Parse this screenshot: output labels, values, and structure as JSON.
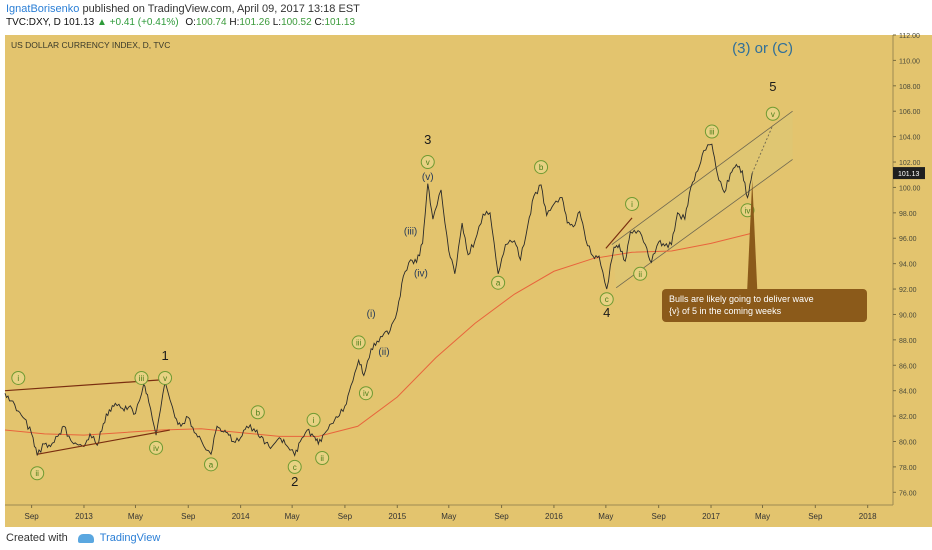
{
  "header": {
    "author": "IgnatBorisenko",
    "published_text": " published on TradingView.com, April 09, 2017 13:18 EST",
    "symbol": "TVC:DXY, D",
    "last": "101.13",
    "change": "▲ +0.41 (+0.41%)",
    "o_label": "O:",
    "o_val": "100.74",
    "h_label": "H:",
    "h_val": "101.26",
    "l_label": "L:",
    "l_val": "100.52",
    "c_label": "C:",
    "c_val": "101.13"
  },
  "footer": {
    "created_with": "Created with",
    "brand": "TradingView"
  },
  "colors": {
    "background": "#e3c46e",
    "price_line": "#2a2a2a",
    "moving_average": "#e8643c",
    "trendline": "#7a2e10",
    "wave_label": "#4b7d1a",
    "wave_fill": "#dec774",
    "title_accent": "#2f6f9a",
    "callout": "#8b5a1a"
  },
  "chart_data": {
    "type": "line",
    "title": "US DOLLAR CURRENCY INDEX, D, TVC",
    "ylim": [
      75,
      112
    ],
    "yticks": [
      76,
      78,
      80,
      82,
      84,
      86,
      88,
      90,
      92,
      94,
      96,
      98,
      100,
      102,
      104,
      106,
      108,
      110,
      112
    ],
    "xlim": [
      "2012-07-01",
      "2018-03-01"
    ],
    "xticks": [
      {
        "date": "2012-09-01",
        "label": "Sep"
      },
      {
        "date": "2013-01-01",
        "label": "2013"
      },
      {
        "date": "2013-05-01",
        "label": "May"
      },
      {
        "date": "2013-09-01",
        "label": "Sep"
      },
      {
        "date": "2014-01-01",
        "label": "2014"
      },
      {
        "date": "2014-05-01",
        "label": "May"
      },
      {
        "date": "2014-09-01",
        "label": "Sep"
      },
      {
        "date": "2015-01-01",
        "label": "2015"
      },
      {
        "date": "2015-05-01",
        "label": "May"
      },
      {
        "date": "2015-09-01",
        "label": "Sep"
      },
      {
        "date": "2016-01-01",
        "label": "2016"
      },
      {
        "date": "2016-05-01",
        "label": "May"
      },
      {
        "date": "2016-09-01",
        "label": "Sep"
      },
      {
        "date": "2017-01-01",
        "label": "2017"
      },
      {
        "date": "2017-05-01",
        "label": "May"
      },
      {
        "date": "2017-09-01",
        "label": "Sep"
      },
      {
        "date": "2018-01-01",
        "label": "2018"
      }
    ],
    "grid": false,
    "last_price_label": "101.13",
    "price": [
      [
        "2012-07-01",
        83.8
      ],
      [
        "2012-07-15",
        83.2
      ],
      [
        "2012-08-01",
        82.4
      ],
      [
        "2012-08-15",
        81.8
      ],
      [
        "2012-09-01",
        80.6
      ],
      [
        "2012-09-14",
        78.9
      ],
      [
        "2012-10-01",
        79.8
      ],
      [
        "2012-10-15",
        79.6
      ],
      [
        "2012-11-01",
        80.4
      ],
      [
        "2012-11-15",
        81.2
      ],
      [
        "2012-12-01",
        80.1
      ],
      [
        "2012-12-15",
        79.8
      ],
      [
        "2013-01-01",
        79.6
      ],
      [
        "2013-01-15",
        80.6
      ],
      [
        "2013-02-01",
        79.7
      ],
      [
        "2013-02-15",
        81.4
      ],
      [
        "2013-03-01",
        82.5
      ],
      [
        "2013-03-15",
        83.0
      ],
      [
        "2013-04-01",
        82.6
      ],
      [
        "2013-04-15",
        82.7
      ],
      [
        "2013-05-01",
        82.2
      ],
      [
        "2013-05-20",
        84.5
      ],
      [
        "2013-06-01",
        83.1
      ],
      [
        "2013-06-18",
        80.5
      ],
      [
        "2013-07-09",
        84.7
      ],
      [
        "2013-08-01",
        81.9
      ],
      [
        "2013-08-15",
        81.2
      ],
      [
        "2013-09-01",
        81.9
      ],
      [
        "2013-09-15",
        80.7
      ],
      [
        "2013-10-01",
        80.1
      ],
      [
        "2013-10-24",
        79.0
      ],
      [
        "2013-11-07",
        81.2
      ],
      [
        "2013-11-20",
        80.8
      ],
      [
        "2013-12-01",
        80.7
      ],
      [
        "2013-12-15",
        80.0
      ],
      [
        "2014-01-01",
        80.3
      ],
      [
        "2014-01-15",
        81.2
      ],
      [
        "2014-02-01",
        81.0
      ],
      [
        "2014-02-15",
        80.3
      ],
      [
        "2014-03-01",
        79.9
      ],
      [
        "2014-03-15",
        79.6
      ],
      [
        "2014-04-01",
        80.3
      ],
      [
        "2014-04-15",
        79.8
      ],
      [
        "2014-05-07",
        78.9
      ],
      [
        "2014-05-20",
        80.0
      ],
      [
        "2014-06-05",
        80.9
      ],
      [
        "2014-06-20",
        80.4
      ],
      [
        "2014-07-01",
        79.8
      ],
      [
        "2014-07-15",
        80.6
      ],
      [
        "2014-08-01",
        81.4
      ],
      [
        "2014-08-15",
        81.9
      ],
      [
        "2014-09-01",
        82.8
      ],
      [
        "2014-09-15",
        84.4
      ],
      [
        "2014-10-03",
        86.4
      ],
      [
        "2014-10-15",
        85.2
      ],
      [
        "2014-11-01",
        87.3
      ],
      [
        "2014-11-15",
        87.9
      ],
      [
        "2014-12-01",
        88.5
      ],
      [
        "2014-12-15",
        88.7
      ],
      [
        "2015-01-01",
        90.3
      ],
      [
        "2015-01-15",
        93.0
      ],
      [
        "2015-02-01",
        94.3
      ],
      [
        "2015-02-15",
        94.1
      ],
      [
        "2015-03-01",
        95.6
      ],
      [
        "2015-03-13",
        100.3
      ],
      [
        "2015-03-25",
        97.5
      ],
      [
        "2015-04-13",
        99.8
      ],
      [
        "2015-05-01",
        95.0
      ],
      [
        "2015-05-15",
        93.2
      ],
      [
        "2015-06-01",
        97.2
      ],
      [
        "2015-06-15",
        94.7
      ],
      [
        "2015-07-01",
        95.8
      ],
      [
        "2015-07-20",
        97.9
      ],
      [
        "2015-08-05",
        98.0
      ],
      [
        "2015-08-24",
        93.2
      ],
      [
        "2015-09-10",
        95.5
      ],
      [
        "2015-10-01",
        95.8
      ],
      [
        "2015-10-15",
        94.3
      ],
      [
        "2015-11-01",
        97.0
      ],
      [
        "2015-11-15",
        99.3
      ],
      [
        "2015-12-02",
        100.2
      ],
      [
        "2015-12-15",
        97.8
      ],
      [
        "2016-01-01",
        98.7
      ],
      [
        "2016-01-20",
        99.2
      ],
      [
        "2016-02-01",
        97.2
      ],
      [
        "2016-02-15",
        96.9
      ],
      [
        "2016-03-01",
        98.1
      ],
      [
        "2016-03-15",
        95.9
      ],
      [
        "2016-04-01",
        94.6
      ],
      [
        "2016-04-15",
        94.6
      ],
      [
        "2016-05-03",
        92.0
      ],
      [
        "2016-05-20",
        95.3
      ],
      [
        "2016-06-01",
        95.5
      ],
      [
        "2016-06-15",
        94.2
      ],
      [
        "2016-06-27",
        96.5
      ],
      [
        "2016-07-15",
        96.6
      ],
      [
        "2016-08-01",
        95.5
      ],
      [
        "2016-08-15",
        94.1
      ],
      [
        "2016-09-01",
        95.7
      ],
      [
        "2016-09-15",
        95.4
      ],
      [
        "2016-10-01",
        95.5
      ],
      [
        "2016-10-15",
        98.0
      ],
      [
        "2016-11-01",
        97.5
      ],
      [
        "2016-11-15",
        100.0
      ],
      [
        "2016-12-01",
        101.3
      ],
      [
        "2016-12-15",
        102.9
      ],
      [
        "2017-01-03",
        103.4
      ],
      [
        "2017-01-15",
        101.2
      ],
      [
        "2017-02-01",
        99.6
      ],
      [
        "2017-02-15",
        101.1
      ],
      [
        "2017-03-01",
        101.8
      ],
      [
        "2017-03-15",
        101.3
      ],
      [
        "2017-03-27",
        99.2
      ],
      [
        "2017-04-07",
        101.13
      ]
    ],
    "moving_average": [
      [
        "2012-07-01",
        80.9
      ],
      [
        "2012-10-01",
        80.6
      ],
      [
        "2013-01-01",
        80.5
      ],
      [
        "2013-04-01",
        80.7
      ],
      [
        "2013-07-01",
        80.9
      ],
      [
        "2013-10-01",
        81.0
      ],
      [
        "2014-01-01",
        80.7
      ],
      [
        "2014-04-01",
        80.4
      ],
      [
        "2014-07-01",
        80.4
      ],
      [
        "2014-10-01",
        81.2
      ],
      [
        "2015-01-01",
        83.5
      ],
      [
        "2015-04-01",
        86.6
      ],
      [
        "2015-07-01",
        89.3
      ],
      [
        "2015-10-01",
        91.6
      ],
      [
        "2016-01-01",
        93.4
      ],
      [
        "2016-04-01",
        94.4
      ],
      [
        "2016-07-01",
        94.9
      ],
      [
        "2016-10-01",
        95.0
      ],
      [
        "2017-01-01",
        95.6
      ],
      [
        "2017-04-07",
        96.4
      ]
    ],
    "trendlines": [
      {
        "from": [
          "2012-07-01",
          84.0
        ],
        "to": [
          "2013-07-20",
          84.9
        ]
      },
      {
        "from": [
          "2012-09-15",
          79.0
        ],
        "to": [
          "2013-07-20",
          80.9
        ]
      },
      {
        "from": [
          "2016-05-01",
          95.2
        ],
        "to": [
          "2016-07-01",
          97.6
        ]
      }
    ],
    "channel": {
      "upper": {
        "from": [
          "2016-05-15",
          95.5
        ],
        "to": [
          "2017-07-10",
          106.0
        ]
      },
      "lower": {
        "from": [
          "2016-05-25",
          92.1
        ],
        "to": [
          "2017-07-10",
          102.2
        ]
      }
    },
    "projection": [
      [
        "2017-04-07",
        101.13
      ],
      [
        "2017-05-25",
        104.9
      ]
    ],
    "annotations": [
      {
        "text": "1",
        "date": "2013-07-09",
        "y": 86.4,
        "style": "plain"
      },
      {
        "text": "2",
        "date": "2014-05-07",
        "y": 76.5,
        "style": "plain"
      },
      {
        "text": "3",
        "date": "2015-03-13",
        "y": 103.4,
        "style": "plain"
      },
      {
        "text": "4",
        "date": "2016-05-03",
        "y": 89.8,
        "style": "plain"
      },
      {
        "text": "5",
        "date": "2017-05-25",
        "y": 107.6,
        "style": "plain"
      },
      {
        "text": "(3) or (C)",
        "date": "2017-05-01",
        "y": 110.6,
        "style": "accent"
      },
      {
        "text": "(i)",
        "date": "2014-11-01",
        "y": 89.8,
        "style": "paren"
      },
      {
        "text": "(ii)",
        "date": "2014-12-01",
        "y": 86.8,
        "style": "paren"
      },
      {
        "text": "(iii)",
        "date": "2015-02-01",
        "y": 96.3,
        "style": "paren"
      },
      {
        "text": "(iv)",
        "date": "2015-02-25",
        "y": 93.0,
        "style": "paren"
      },
      {
        "text": "(v)",
        "date": "2015-03-13",
        "y": 100.6,
        "style": "paren"
      },
      {
        "text": "i",
        "date": "2012-08-01",
        "y": 85.0,
        "style": "circle"
      },
      {
        "text": "ii",
        "date": "2012-09-14",
        "y": 77.5,
        "style": "circle"
      },
      {
        "text": "iii",
        "date": "2013-05-15",
        "y": 85.0,
        "style": "circle"
      },
      {
        "text": "iv",
        "date": "2013-06-18",
        "y": 79.5,
        "style": "circle"
      },
      {
        "text": "v",
        "date": "2013-07-09",
        "y": 85.0,
        "style": "circle"
      },
      {
        "text": "a",
        "date": "2013-10-24",
        "y": 78.2,
        "style": "circle"
      },
      {
        "text": "b",
        "date": "2014-02-10",
        "y": 82.3,
        "style": "circle"
      },
      {
        "text": "c",
        "date": "2014-05-07",
        "y": 78.0,
        "style": "circle"
      },
      {
        "text": "i",
        "date": "2014-06-20",
        "y": 81.7,
        "style": "circle"
      },
      {
        "text": "ii",
        "date": "2014-07-10",
        "y": 78.7,
        "style": "circle"
      },
      {
        "text": "iii",
        "date": "2014-10-03",
        "y": 87.8,
        "style": "circle"
      },
      {
        "text": "iv",
        "date": "2014-10-20",
        "y": 83.8,
        "style": "circle"
      },
      {
        "text": "v",
        "date": "2015-03-13",
        "y": 102.0,
        "style": "circle"
      },
      {
        "text": "a",
        "date": "2015-08-24",
        "y": 92.5,
        "style": "circle"
      },
      {
        "text": "b",
        "date": "2015-12-02",
        "y": 101.6,
        "style": "circle"
      },
      {
        "text": "c",
        "date": "2016-05-03",
        "y": 91.2,
        "style": "circle"
      },
      {
        "text": "i",
        "date": "2016-07-01",
        "y": 98.7,
        "style": "circle"
      },
      {
        "text": "ii",
        "date": "2016-07-20",
        "y": 93.2,
        "style": "circle"
      },
      {
        "text": "iii",
        "date": "2017-01-03",
        "y": 104.4,
        "style": "circle"
      },
      {
        "text": "iv",
        "date": "2017-03-27",
        "y": 98.2,
        "style": "circle"
      },
      {
        "text": "v",
        "date": "2017-05-25",
        "y": 105.8,
        "style": "circle"
      }
    ],
    "callout": {
      "text_line1": "Bulls are likely going to deliver wave",
      "text_line2": "{v} of 5 in the coming weeks",
      "points_to": [
        "2017-04-07",
        100.6
      ]
    }
  }
}
